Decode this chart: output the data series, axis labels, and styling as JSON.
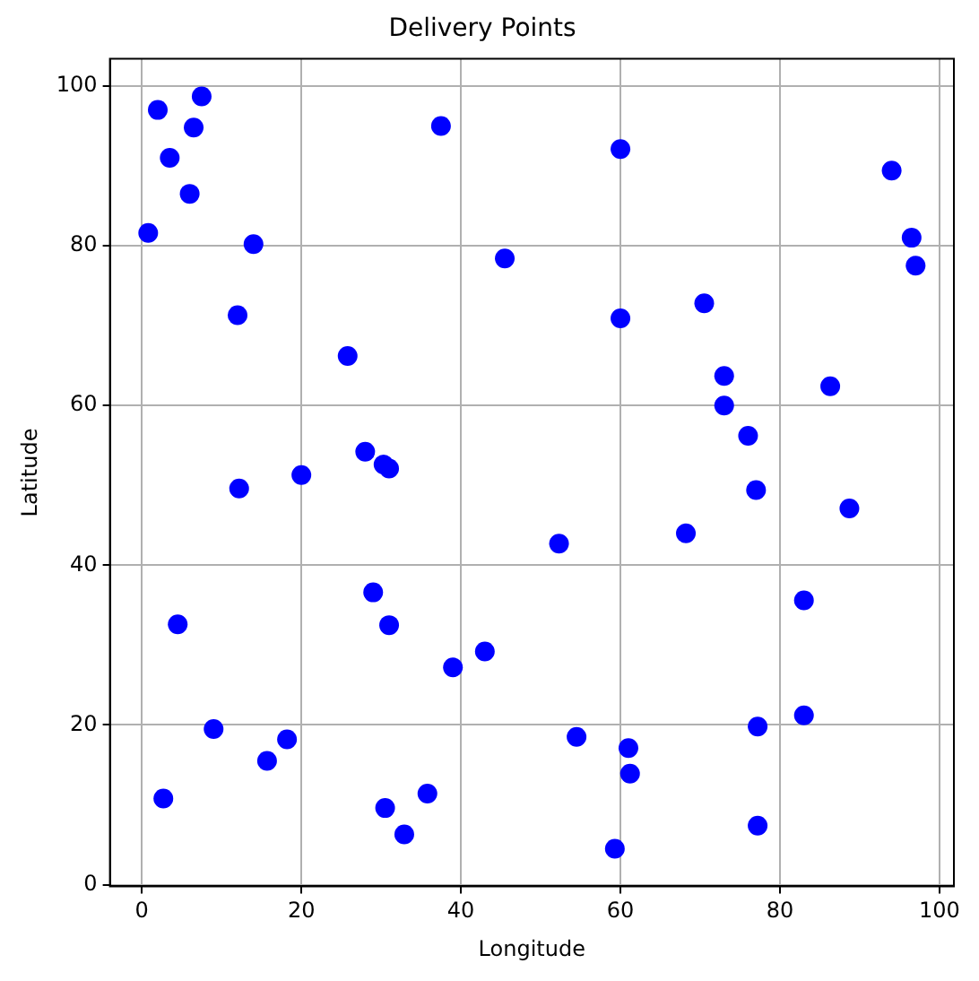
{
  "chart_data": {
    "type": "scatter",
    "title": "Delivery Points",
    "xlabel": "Longitude",
    "ylabel": "Latitude",
    "grid": true,
    "marker": "circle",
    "legend": false,
    "xlim": [
      -4,
      101.8
    ],
    "ylim": [
      -0.2,
      103.4
    ],
    "xticks": [
      0,
      20,
      40,
      60,
      80,
      100
    ],
    "yticks": [
      0,
      20,
      40,
      60,
      80,
      100
    ],
    "series": [
      {
        "color": "#0000ff",
        "x": [
          2,
          3.5,
          7.5,
          6.5,
          6,
          0.8,
          14,
          12,
          37.5,
          45.5,
          60,
          60,
          70.5,
          94,
          96.5,
          97,
          25.8,
          73,
          73,
          86.3,
          76,
          77,
          12.2,
          20,
          28,
          30.3,
          31,
          52.3,
          68.2,
          88.7,
          29,
          4.5,
          31,
          83,
          43,
          39,
          9,
          18.2,
          15.7,
          54.5,
          61,
          61.2,
          77.2,
          83,
          2.7,
          30.5,
          35.8,
          32.9,
          59.3,
          77.2
        ],
        "values": [
          97,
          91,
          98.7,
          94.8,
          86.5,
          81.6,
          80.2,
          71.3,
          95,
          78.4,
          92.1,
          70.9,
          72.8,
          89.4,
          81,
          77.5,
          66.2,
          63.7,
          60,
          62.4,
          56.2,
          49.4,
          49.6,
          51.3,
          54.2,
          52.6,
          52.1,
          42.7,
          44,
          47.1,
          36.6,
          32.6,
          32.5,
          35.6,
          29.2,
          27.2,
          19.5,
          18.2,
          15.5,
          18.5,
          17.1,
          13.9,
          19.8,
          21.2,
          10.8,
          9.6,
          11.4,
          6.3,
          4.5,
          7.4
        ]
      }
    ]
  }
}
